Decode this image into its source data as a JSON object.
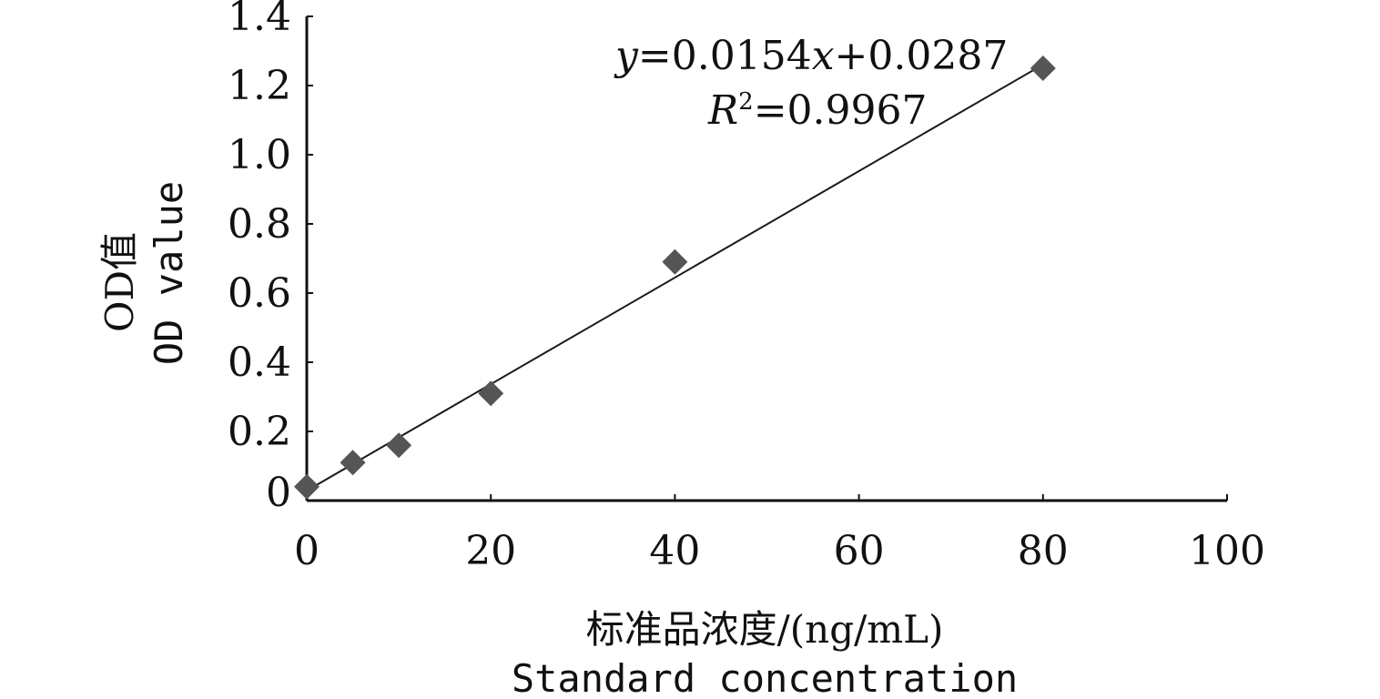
{
  "chart_data": {
    "type": "scatter",
    "x": [
      0,
      5,
      10,
      20,
      40,
      80
    ],
    "y": [
      0.04,
      0.11,
      0.16,
      0.31,
      0.69,
      1.25
    ],
    "xlim": [
      0,
      100
    ],
    "ylim": [
      0,
      1.4
    ],
    "xticks": [
      "0",
      "20",
      "40",
      "60",
      "80",
      "100"
    ],
    "yticks": [
      "0",
      "0.2",
      "0.4",
      "0.6",
      "0.8",
      "1.0",
      "1.2",
      "1.4"
    ],
    "xlabel_cn": "标准品浓度/(ng/mL)",
    "xlabel_en": "Standard concentration",
    "ylabel_cn": "OD值",
    "ylabel_en": "OD value",
    "trendline": {
      "slope": 0.0154,
      "intercept": 0.0287,
      "x_range": [
        0,
        80
      ],
      "equation_parts": [
        "y",
        "=0.0154",
        "x",
        "+0.0287"
      ],
      "r2_parts": [
        "R",
        "2",
        "=0.9967"
      ]
    },
    "marker": "diamond",
    "marker_color": "#555555",
    "line_color": "#1a1a1a",
    "grid": false
  }
}
